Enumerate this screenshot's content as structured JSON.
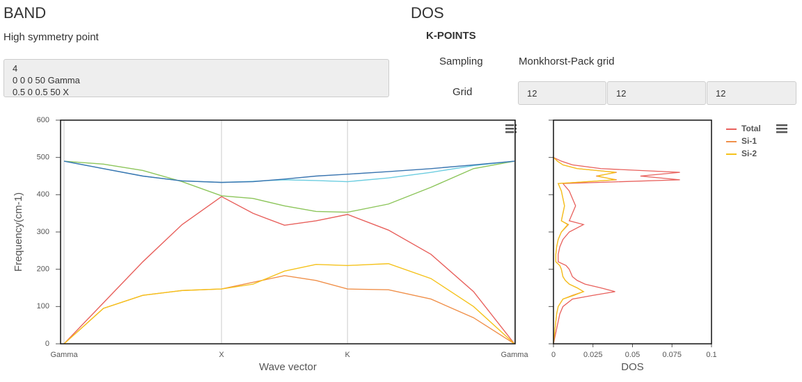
{
  "band": {
    "heading": "BAND",
    "label": "High symmetry point",
    "points_text": "4\n0 0 0 50 Gamma\n0.5 0 0.5 50 X"
  },
  "dos": {
    "heading": "DOS",
    "section": "K-POINTS",
    "sampling_label": "Sampling",
    "sampling_value": "Monkhorst-Pack grid",
    "grid_label": "Grid",
    "grid": [
      12,
      12,
      12
    ]
  },
  "chart_data": [
    {
      "type": "line",
      "xlabel": "Wave vector",
      "ylabel": "Frequency(cm-1)",
      "x": [
        0,
        0.25,
        0.5,
        0.75,
        1,
        1.2,
        1.4,
        1.6,
        1.8,
        2.06,
        2.33,
        2.6,
        2.86
      ],
      "xlim": [
        0,
        2.86
      ],
      "xticks": [
        {
          "value": 0,
          "label": "Gamma"
        },
        {
          "value": 1,
          "label": "X"
        },
        {
          "value": 1.8,
          "label": "K"
        },
        {
          "value": 2.86,
          "label": "Gamma"
        }
      ],
      "ylim": [
        0,
        600
      ],
      "yticks": [
        0,
        100,
        200,
        300,
        400,
        500,
        600
      ],
      "grid": true,
      "series": [
        {
          "color": "#e8605c",
          "values": [
            0,
            110,
            220,
            320,
            395,
            350,
            318,
            330,
            347,
            305,
            240,
            140,
            0
          ]
        },
        {
          "color": "#f0904a",
          "values": [
            0,
            95,
            130,
            143,
            147,
            165,
            183,
            170,
            147,
            145,
            120,
            70,
            0
          ]
        },
        {
          "color": "#f5c21b",
          "values": [
            0,
            95,
            130,
            143,
            147,
            160,
            195,
            213,
            210,
            215,
            175,
            100,
            0
          ]
        },
        {
          "color": "#8cc55a",
          "values": [
            490,
            482,
            465,
            435,
            397,
            390,
            370,
            355,
            353,
            375,
            420,
            470,
            490
          ]
        },
        {
          "color": "#6ccde0",
          "values": [
            490,
            470,
            450,
            437,
            433,
            436,
            440,
            438,
            435,
            445,
            460,
            478,
            490
          ]
        },
        {
          "color": "#3a75b0",
          "values": [
            490,
            470,
            450,
            437,
            433,
            435,
            442,
            450,
            455,
            462,
            470,
            480,
            490
          ]
        }
      ]
    },
    {
      "type": "line",
      "orientation": "horizontal",
      "xlabel": "DOS",
      "frequency": [
        0,
        20,
        40,
        60,
        80,
        100,
        120,
        130,
        140,
        150,
        160,
        170,
        180,
        200,
        210,
        220,
        240,
        260,
        280,
        300,
        320,
        330,
        350,
        370,
        390,
        410,
        430,
        440,
        450,
        460,
        470,
        480,
        490,
        500
      ],
      "xlim": [
        0,
        0.1
      ],
      "xticks": [
        0,
        0.025,
        0.05,
        0.075,
        0.1
      ],
      "ylim": [
        0,
        600
      ],
      "yticks": [
        0,
        100,
        200,
        300,
        400,
        500,
        600
      ],
      "legend": "right",
      "series": [
        {
          "name": "Total",
          "color": "#e8605c",
          "values": [
            0,
            0.001,
            0.002,
            0.003,
            0.004,
            0.006,
            0.012,
            0.025,
            0.039,
            0.03,
            0.02,
            0.015,
            0.012,
            0.01,
            0.008,
            0.003,
            0.003,
            0.004,
            0.006,
            0.01,
            0.019,
            0.01,
            0.012,
            0.014,
            0.012,
            0.01,
            0.006,
            0.08,
            0.055,
            0.08,
            0.03,
            0.012,
            0.005,
            0
          ]
        },
        {
          "name": "Si-1",
          "color": "#f0904a",
          "values": [
            0,
            0.0005,
            0.001,
            0.0015,
            0.002,
            0.003,
            0.006,
            0.012,
            0.019,
            0.015,
            0.01,
            0.0075,
            0.006,
            0.005,
            0.004,
            0.0015,
            0.0015,
            0.002,
            0.003,
            0.005,
            0.0095,
            0.005,
            0.006,
            0.007,
            0.006,
            0.005,
            0.003,
            0.04,
            0.027,
            0.04,
            0.015,
            0.006,
            0.0025,
            0
          ]
        },
        {
          "name": "Si-2",
          "color": "#f5c21b",
          "values": [
            0,
            0.0005,
            0.001,
            0.0015,
            0.002,
            0.003,
            0.006,
            0.013,
            0.019,
            0.015,
            0.01,
            0.0075,
            0.006,
            0.005,
            0.004,
            0.0015,
            0.0015,
            0.002,
            0.003,
            0.005,
            0.009,
            0.005,
            0.006,
            0.007,
            0.006,
            0.005,
            0.003,
            0.039,
            0.028,
            0.039,
            0.015,
            0.006,
            0.0025,
            0
          ]
        }
      ]
    }
  ]
}
